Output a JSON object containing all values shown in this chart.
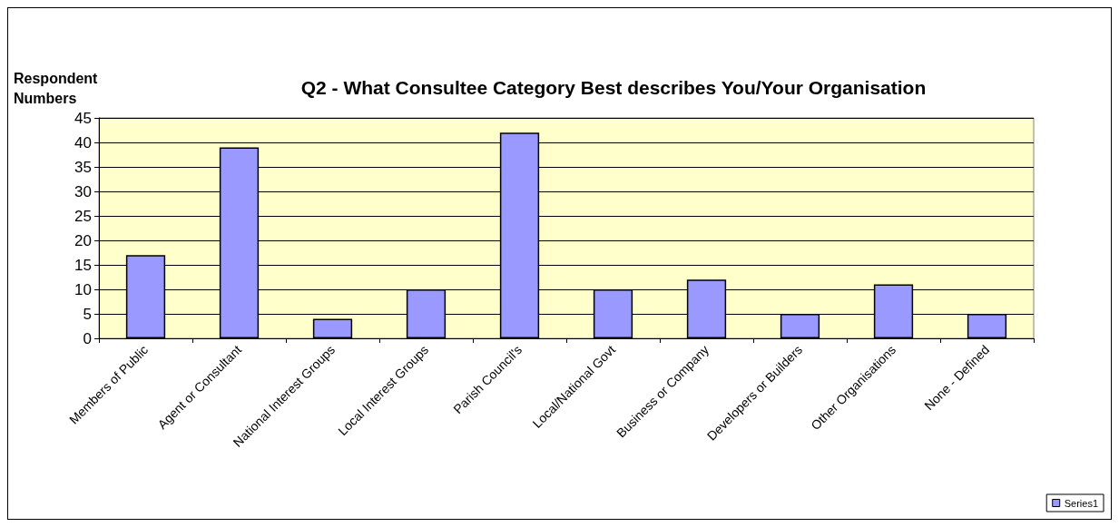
{
  "chart_data": {
    "type": "bar",
    "title": "Q2 - What Consultee Category Best describes You/Your Organisation",
    "ylabel": "Respondent Numbers",
    "categories": [
      "Members of Public",
      "Agent or Consultant",
      "National Interest Groups",
      "Local Interest Groups",
      "Parish Council's",
      "Local/National Govt",
      "Business or Company",
      "Developers or Builders",
      "Other Organisations",
      "None - Defined"
    ],
    "series": [
      {
        "name": "Series1",
        "color": "#9999ff",
        "values": [
          17,
          39,
          4,
          10,
          42,
          10,
          12,
          5,
          11,
          5
        ]
      }
    ],
    "ylim": [
      0,
      45
    ],
    "yticks": [
      0,
      5,
      10,
      15,
      20,
      25,
      30,
      35,
      40,
      45
    ],
    "grid": "y",
    "legend": "bottom right"
  }
}
